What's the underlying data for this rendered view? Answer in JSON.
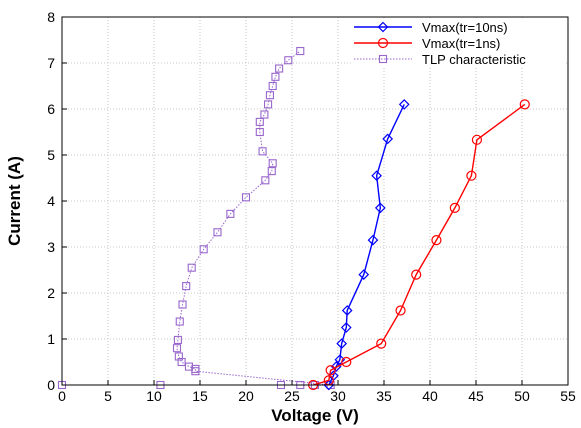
{
  "chart_data": {
    "type": "line",
    "xlabel": "Voltage (V)",
    "ylabel": "Current (A)",
    "xlim": [
      0,
      55
    ],
    "ylim": [
      0,
      8
    ],
    "xticks": [
      "0",
      "5",
      "10",
      "15",
      "20",
      "25",
      "30",
      "35",
      "40",
      "45",
      "50",
      "55"
    ],
    "yticks": [
      "0",
      "1",
      "2",
      "3",
      "4",
      "5",
      "6",
      "7",
      "8"
    ],
    "grid": true,
    "legend_position": "top-right",
    "series": [
      {
        "name": "Vmax(tr=10ns)",
        "color": "#0000ff",
        "marker": "diamond",
        "line_style": "solid",
        "points": [
          [
            29.0,
            0.0
          ],
          [
            29.5,
            0.2
          ],
          [
            29.8,
            0.4
          ],
          [
            30.2,
            0.55
          ],
          [
            30.4,
            0.9
          ],
          [
            30.9,
            1.25
          ],
          [
            31.0,
            1.62
          ],
          [
            32.8,
            2.4
          ],
          [
            33.8,
            3.15
          ],
          [
            34.6,
            3.85
          ],
          [
            34.2,
            4.55
          ],
          [
            35.4,
            5.35
          ],
          [
            37.2,
            6.1
          ]
        ]
      },
      {
        "name": "Vmax(tr=1ns)",
        "color": "#ff0000",
        "marker": "circle",
        "line_style": "solid",
        "points": [
          [
            27.3,
            0.0
          ],
          [
            29.0,
            0.1
          ],
          [
            29.2,
            0.32
          ],
          [
            30.9,
            0.5
          ],
          [
            34.7,
            0.9
          ],
          [
            36.8,
            1.62
          ],
          [
            38.5,
            2.4
          ],
          [
            40.7,
            3.15
          ],
          [
            42.7,
            3.85
          ],
          [
            44.5,
            4.55
          ],
          [
            45.1,
            5.33
          ],
          [
            50.3,
            6.1
          ]
        ]
      },
      {
        "name": "TLP characteristic",
        "color": "#9966cc",
        "marker": "square",
        "line_style": "dotted",
        "points": [
          [
            0.0,
            0.0
          ],
          [
            10.7,
            0.0
          ],
          [
            23.8,
            0.0
          ],
          [
            25.9,
            0.0
          ],
          [
            27.5,
            0.0
          ],
          [
            29.2,
            0.0
          ],
          [
            14.5,
            0.3
          ],
          [
            14.5,
            0.35
          ],
          [
            13.8,
            0.4
          ],
          [
            13.0,
            0.5
          ],
          [
            12.7,
            0.62
          ],
          [
            12.5,
            0.8
          ],
          [
            12.6,
            0.98
          ],
          [
            12.8,
            1.38
          ],
          [
            13.1,
            1.75
          ],
          [
            13.5,
            2.15
          ],
          [
            14.1,
            2.55
          ],
          [
            15.4,
            2.95
          ],
          [
            16.9,
            3.32
          ],
          [
            18.3,
            3.72
          ],
          [
            20.0,
            4.08
          ],
          [
            22.1,
            4.45
          ],
          [
            22.8,
            4.65
          ],
          [
            22.9,
            4.82
          ],
          [
            21.8,
            5.08
          ],
          [
            21.5,
            5.5
          ],
          [
            21.5,
            5.72
          ],
          [
            22.0,
            5.88
          ],
          [
            22.4,
            6.1
          ],
          [
            22.6,
            6.3
          ],
          [
            22.9,
            6.5
          ],
          [
            23.2,
            6.7
          ],
          [
            23.6,
            6.88
          ],
          [
            24.6,
            7.06
          ],
          [
            25.9,
            7.26
          ]
        ]
      }
    ]
  }
}
